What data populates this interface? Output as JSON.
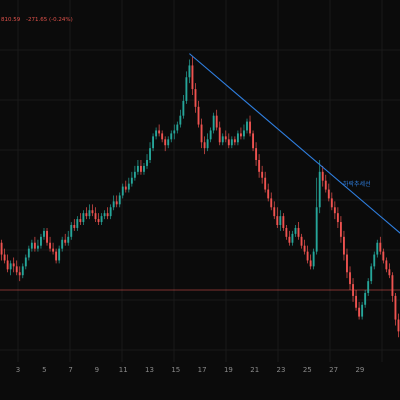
{
  "header": {
    "price": "810.59",
    "change": "-271.65 (-0.24%)"
  },
  "colors": {
    "background": "#0b0b0b",
    "up": "#26a69a",
    "down": "#ef5350",
    "trendline": "#2f7fe0",
    "hline": "#c24a45"
  },
  "chart_data": {
    "type": "candlestick",
    "x_ticks": [
      "3",
      "5",
      "7",
      "9",
      "11",
      "13",
      "15",
      "17",
      "19",
      "21",
      "23",
      "25",
      "27",
      "29"
    ],
    "grid": true,
    "trendline_label": "하락추세선",
    "candles": [
      [
        59,
        57,
        62,
        56
      ],
      [
        57,
        58,
        60,
        55
      ],
      [
        58,
        54,
        59,
        52
      ],
      [
        54,
        52,
        56,
        51
      ],
      [
        52,
        49,
        54,
        48
      ],
      [
        49,
        51,
        52,
        47
      ],
      [
        51,
        50,
        53,
        48
      ],
      [
        50,
        48,
        52,
        47
      ],
      [
        48,
        47,
        50,
        45
      ],
      [
        47,
        50,
        51,
        46
      ],
      [
        50,
        53,
        54,
        49
      ],
      [
        53,
        56,
        57,
        52
      ],
      [
        56,
        58,
        59,
        55
      ],
      [
        58,
        56,
        60,
        55
      ],
      [
        56,
        57,
        59,
        55
      ],
      [
        57,
        60,
        61,
        56
      ],
      [
        60,
        62,
        63,
        59
      ],
      [
        62,
        58,
        63,
        57
      ],
      [
        58,
        56,
        60,
        55
      ],
      [
        56,
        55,
        58,
        54
      ],
      [
        55,
        52,
        56,
        51
      ],
      [
        52,
        56,
        57,
        51
      ],
      [
        56,
        59,
        60,
        55
      ],
      [
        59,
        58,
        61,
        57
      ],
      [
        58,
        60,
        62,
        57
      ],
      [
        60,
        64,
        65,
        59
      ],
      [
        64,
        63,
        66,
        62
      ],
      [
        63,
        66,
        67,
        62
      ],
      [
        66,
        65,
        68,
        64
      ],
      [
        65,
        68,
        69,
        64
      ],
      [
        68,
        67,
        70,
        66
      ],
      [
        67,
        69,
        71,
        66
      ],
      [
        69,
        68,
        71,
        67
      ],
      [
        68,
        66,
        70,
        65
      ],
      [
        66,
        65,
        68,
        64
      ],
      [
        65,
        67,
        68,
        64
      ],
      [
        67,
        68,
        69,
        66
      ],
      [
        68,
        67,
        70,
        66
      ],
      [
        67,
        70,
        71,
        66
      ],
      [
        70,
        72,
        74,
        69
      ],
      [
        72,
        71,
        74,
        70
      ],
      [
        71,
        74,
        75,
        70
      ],
      [
        74,
        77,
        78,
        73
      ],
      [
        77,
        76,
        79,
        75
      ],
      [
        76,
        78,
        80,
        75
      ],
      [
        78,
        80,
        82,
        77
      ],
      [
        80,
        82,
        84,
        79
      ],
      [
        82,
        84,
        86,
        81
      ],
      [
        84,
        82,
        86,
        81
      ],
      [
        82,
        84,
        85,
        81
      ],
      [
        84,
        86,
        88,
        83
      ],
      [
        86,
        90,
        92,
        85
      ],
      [
        90,
        94,
        95,
        89
      ],
      [
        94,
        96,
        97,
        93
      ],
      [
        96,
        95,
        98,
        94
      ],
      [
        95,
        93,
        96,
        92
      ],
      [
        93,
        91,
        94,
        89
      ],
      [
        91,
        93,
        94,
        90
      ],
      [
        93,
        95,
        96,
        92
      ],
      [
        95,
        96,
        98,
        93
      ],
      [
        96,
        98,
        99,
        95
      ],
      [
        98,
        101,
        103,
        97
      ],
      [
        101,
        106,
        108,
        100
      ],
      [
        106,
        114,
        116,
        105
      ],
      [
        114,
        118,
        120,
        112
      ],
      [
        118,
        110,
        121,
        108
      ],
      [
        110,
        104,
        112,
        102
      ],
      [
        104,
        98,
        106,
        97
      ],
      [
        98,
        92,
        100,
        90
      ],
      [
        92,
        90,
        94,
        88
      ],
      [
        90,
        93,
        95,
        89
      ],
      [
        93,
        96,
        97,
        92
      ],
      [
        96,
        101,
        102,
        95
      ],
      [
        101,
        97,
        103,
        96
      ],
      [
        97,
        92,
        99,
        91
      ],
      [
        92,
        94,
        95,
        91
      ],
      [
        94,
        93,
        96,
        92
      ],
      [
        93,
        91,
        95,
        90
      ],
      [
        91,
        93,
        94,
        90
      ],
      [
        93,
        92,
        94,
        91
      ],
      [
        92,
        95,
        96,
        91
      ],
      [
        95,
        94,
        97,
        93
      ],
      [
        94,
        96,
        98,
        93
      ],
      [
        96,
        99,
        100,
        95
      ],
      [
        99,
        95,
        101,
        94
      ],
      [
        95,
        90,
        96,
        89
      ],
      [
        90,
        86,
        92,
        84
      ],
      [
        86,
        82,
        88,
        80
      ],
      [
        82,
        80,
        84,
        78
      ],
      [
        80,
        76,
        82,
        75
      ],
      [
        76,
        73,
        78,
        72
      ],
      [
        73,
        70,
        75,
        69
      ],
      [
        70,
        67,
        72,
        66
      ],
      [
        67,
        64,
        70,
        63
      ],
      [
        64,
        67,
        69,
        62
      ],
      [
        67,
        63,
        68,
        62
      ],
      [
        63,
        60,
        64,
        59
      ],
      [
        60,
        58,
        62,
        57
      ],
      [
        58,
        61,
        62,
        57
      ],
      [
        61,
        63,
        64,
        60
      ],
      [
        63,
        60,
        65,
        59
      ],
      [
        60,
        57,
        61,
        56
      ],
      [
        57,
        55,
        59,
        54
      ],
      [
        55,
        52,
        57,
        51
      ],
      [
        52,
        50,
        54,
        49
      ],
      [
        50,
        55,
        56,
        49
      ],
      [
        55,
        70,
        80,
        54
      ],
      [
        70,
        82,
        86,
        68
      ],
      [
        82,
        79,
        84,
        77
      ],
      [
        79,
        76,
        81,
        75
      ],
      [
        76,
        73,
        78,
        72
      ],
      [
        73,
        70,
        75,
        69
      ],
      [
        70,
        68,
        72,
        66
      ],
      [
        68,
        65,
        70,
        63
      ],
      [
        65,
        60,
        67,
        58
      ],
      [
        60,
        54,
        62,
        52
      ],
      [
        54,
        48,
        56,
        46
      ],
      [
        48,
        44,
        50,
        42
      ],
      [
        44,
        40,
        46,
        38
      ],
      [
        40,
        36,
        42,
        35
      ],
      [
        36,
        33,
        38,
        32
      ],
      [
        33,
        37,
        38,
        32
      ],
      [
        37,
        41,
        42,
        36
      ],
      [
        41,
        45,
        46,
        40
      ],
      [
        45,
        50,
        51,
        44
      ],
      [
        50,
        54,
        55,
        49
      ],
      [
        54,
        58,
        59,
        53
      ],
      [
        58,
        55,
        60,
        54
      ],
      [
        55,
        52,
        56,
        51
      ],
      [
        52,
        49,
        53,
        48
      ],
      [
        49,
        47,
        51,
        46
      ],
      [
        47,
        40,
        48,
        38
      ],
      [
        40,
        32,
        41,
        30
      ],
      [
        32,
        28,
        34,
        26
      ]
    ],
    "trendline": {
      "from_index": 64,
      "from_value": 122,
      "to_index": 133,
      "to_value": 60
    },
    "hline_value": 42,
    "ylim": [
      20,
      130
    ]
  }
}
